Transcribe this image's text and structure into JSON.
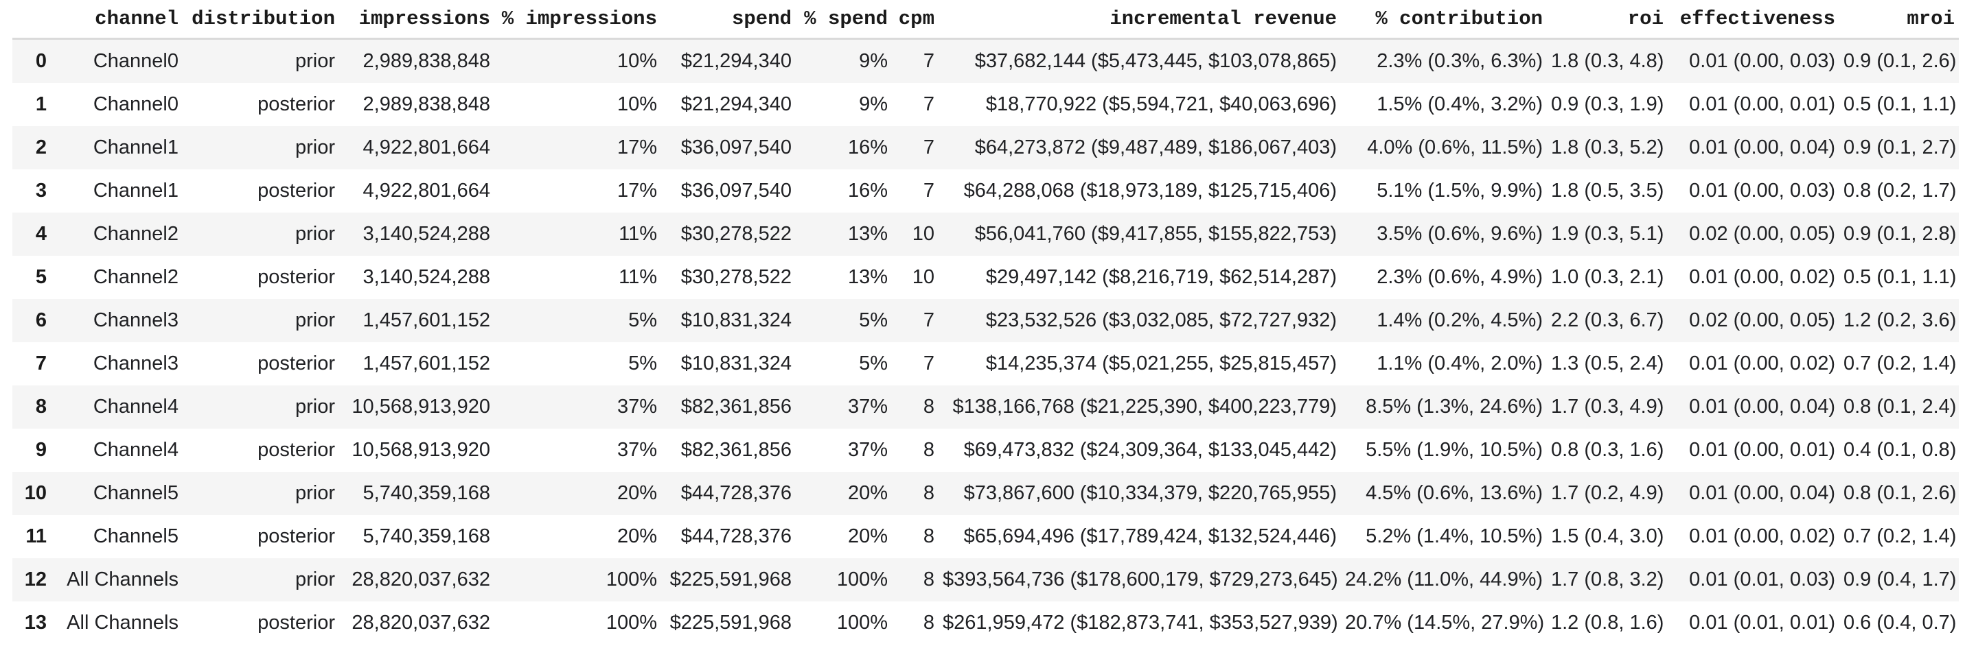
{
  "colors": {
    "background": "#ffffff",
    "row_stripe": "#f5f5f5",
    "header_border": "#dadada",
    "text": "#202124"
  },
  "table": {
    "index_header": "",
    "columns": [
      "channel",
      "distribution",
      "impressions",
      "% impressions",
      "spend",
      "% spend",
      "cpm",
      "incremental revenue",
      "% contribution",
      "roi",
      "effectiveness",
      "mroi"
    ],
    "rows": [
      {
        "index": "0",
        "cells": [
          "Channel0",
          "prior",
          "2,989,838,848",
          "10%",
          "$21,294,340",
          "9%",
          "7",
          "$37,682,144 ($5,473,445, $103,078,865)",
          "2.3% (0.3%, 6.3%)",
          "1.8 (0.3, 4.8)",
          "0.01 (0.00, 0.03)",
          "0.9 (0.1, 2.6)"
        ]
      },
      {
        "index": "1",
        "cells": [
          "Channel0",
          "posterior",
          "2,989,838,848",
          "10%",
          "$21,294,340",
          "9%",
          "7",
          "$18,770,922 ($5,594,721, $40,063,696)",
          "1.5% (0.4%, 3.2%)",
          "0.9 (0.3, 1.9)",
          "0.01 (0.00, 0.01)",
          "0.5 (0.1, 1.1)"
        ]
      },
      {
        "index": "2",
        "cells": [
          "Channel1",
          "prior",
          "4,922,801,664",
          "17%",
          "$36,097,540",
          "16%",
          "7",
          "$64,273,872 ($9,487,489, $186,067,403)",
          "4.0% (0.6%, 11.5%)",
          "1.8 (0.3, 5.2)",
          "0.01 (0.00, 0.04)",
          "0.9 (0.1, 2.7)"
        ]
      },
      {
        "index": "3",
        "cells": [
          "Channel1",
          "posterior",
          "4,922,801,664",
          "17%",
          "$36,097,540",
          "16%",
          "7",
          "$64,288,068 ($18,973,189, $125,715,406)",
          "5.1% (1.5%, 9.9%)",
          "1.8 (0.5, 3.5)",
          "0.01 (0.00, 0.03)",
          "0.8 (0.2, 1.7)"
        ]
      },
      {
        "index": "4",
        "cells": [
          "Channel2",
          "prior",
          "3,140,524,288",
          "11%",
          "$30,278,522",
          "13%",
          "10",
          "$56,041,760 ($9,417,855, $155,822,753)",
          "3.5% (0.6%, 9.6%)",
          "1.9 (0.3, 5.1)",
          "0.02 (0.00, 0.05)",
          "0.9 (0.1, 2.8)"
        ]
      },
      {
        "index": "5",
        "cells": [
          "Channel2",
          "posterior",
          "3,140,524,288",
          "11%",
          "$30,278,522",
          "13%",
          "10",
          "$29,497,142 ($8,216,719, $62,514,287)",
          "2.3% (0.6%, 4.9%)",
          "1.0 (0.3, 2.1)",
          "0.01 (0.00, 0.02)",
          "0.5 (0.1, 1.1)"
        ]
      },
      {
        "index": "6",
        "cells": [
          "Channel3",
          "prior",
          "1,457,601,152",
          "5%",
          "$10,831,324",
          "5%",
          "7",
          "$23,532,526 ($3,032,085, $72,727,932)",
          "1.4% (0.2%, 4.5%)",
          "2.2 (0.3, 6.7)",
          "0.02 (0.00, 0.05)",
          "1.2 (0.2, 3.6)"
        ]
      },
      {
        "index": "7",
        "cells": [
          "Channel3",
          "posterior",
          "1,457,601,152",
          "5%",
          "$10,831,324",
          "5%",
          "7",
          "$14,235,374 ($5,021,255, $25,815,457)",
          "1.1% (0.4%, 2.0%)",
          "1.3 (0.5, 2.4)",
          "0.01 (0.00, 0.02)",
          "0.7 (0.2, 1.4)"
        ]
      },
      {
        "index": "8",
        "cells": [
          "Channel4",
          "prior",
          "10,568,913,920",
          "37%",
          "$82,361,856",
          "37%",
          "8",
          "$138,166,768 ($21,225,390, $400,223,779)",
          "8.5% (1.3%, 24.6%)",
          "1.7 (0.3, 4.9)",
          "0.01 (0.00, 0.04)",
          "0.8 (0.1, 2.4)"
        ]
      },
      {
        "index": "9",
        "cells": [
          "Channel4",
          "posterior",
          "10,568,913,920",
          "37%",
          "$82,361,856",
          "37%",
          "8",
          "$69,473,832 ($24,309,364, $133,045,442)",
          "5.5% (1.9%, 10.5%)",
          "0.8 (0.3, 1.6)",
          "0.01 (0.00, 0.01)",
          "0.4 (0.1, 0.8)"
        ]
      },
      {
        "index": "10",
        "cells": [
          "Channel5",
          "prior",
          "5,740,359,168",
          "20%",
          "$44,728,376",
          "20%",
          "8",
          "$73,867,600 ($10,334,379, $220,765,955)",
          "4.5% (0.6%, 13.6%)",
          "1.7 (0.2, 4.9)",
          "0.01 (0.00, 0.04)",
          "0.8 (0.1, 2.6)"
        ]
      },
      {
        "index": "11",
        "cells": [
          "Channel5",
          "posterior",
          "5,740,359,168",
          "20%",
          "$44,728,376",
          "20%",
          "8",
          "$65,694,496 ($17,789,424, $132,524,446)",
          "5.2% (1.4%, 10.5%)",
          "1.5 (0.4, 3.0)",
          "0.01 (0.00, 0.02)",
          "0.7 (0.2, 1.4)"
        ]
      },
      {
        "index": "12",
        "cells": [
          "All Channels",
          "prior",
          "28,820,037,632",
          "100%",
          "$225,591,968",
          "100%",
          "8",
          "$393,564,736 ($178,600,179, $729,273,645)",
          "24.2% (11.0%, 44.9%)",
          "1.7 (0.8, 3.2)",
          "0.01 (0.01, 0.03)",
          "0.9 (0.4, 1.7)"
        ]
      },
      {
        "index": "13",
        "cells": [
          "All Channels",
          "posterior",
          "28,820,037,632",
          "100%",
          "$225,591,968",
          "100%",
          "8",
          "$261,959,472 ($182,873,741, $353,527,939)",
          "20.7% (14.5%, 27.9%)",
          "1.2 (0.8, 1.6)",
          "0.01 (0.01, 0.01)",
          "0.6 (0.4, 0.7)"
        ]
      }
    ]
  }
}
